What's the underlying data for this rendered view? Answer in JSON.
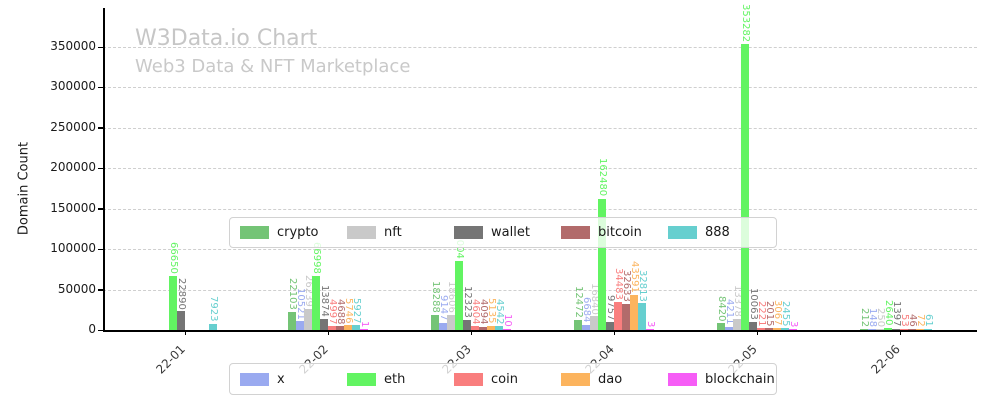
{
  "header": {
    "title": "W3Data.io Chart",
    "subtitle": "Web3 Data & NFT Marketplace"
  },
  "chart_data": {
    "type": "bar",
    "title": "W3Data.io Chart",
    "subtitle": "Web3 Data & NFT Marketplace",
    "xlabel": "",
    "ylabel": "Domain Count",
    "ylim": [
      0,
      396000
    ],
    "grid": "horizontal-dashed",
    "legend_position": "two boxes overlaying plot: top-center and bottom-center",
    "yticks": [
      0,
      50000,
      100000,
      150000,
      200000,
      250000,
      300000,
      350000
    ],
    "categories": [
      "22-01",
      "22-02",
      "22-03",
      "22-04",
      "22-05",
      "22-06"
    ],
    "series": [
      {
        "name": "crypto",
        "color": "#74c476",
        "values": [
          0,
          22103,
          18288,
          12472,
          8420,
          212
        ]
      },
      {
        "name": "x",
        "color": "#9aaaf0",
        "values": [
          0,
          10521,
          9147,
          6684,
          4211,
          148
        ]
      },
      {
        "name": "nft",
        "color": "#c9c9c9",
        "values": [
          0,
          26239,
          18606,
          16840,
          13378,
          250
        ]
      },
      {
        "name": "eth",
        "color": "#62f462",
        "values": [
          66650,
          66998,
          85004,
          162480,
          353282,
          2640
        ]
      },
      {
        "name": "wallet",
        "color": "#757575",
        "values": [
          22890,
          13874,
          12323,
          9757,
          10063,
          1397
        ]
      },
      {
        "name": "coin",
        "color": "#f97e7e",
        "values": [
          0,
          4997,
          4604,
          34483,
          2221,
          53
        ]
      },
      {
        "name": "bitcoin",
        "color": "#b26b6b",
        "values": [
          0,
          4688,
          4094,
          32633,
          2015,
          46
        ]
      },
      {
        "name": "dao",
        "color": "#fcb45e",
        "values": [
          0,
          5746,
          5135,
          43591,
          3067,
          72
        ]
      },
      {
        "name": "888",
        "color": "#66cfcf",
        "values": [
          7923,
          5927,
          4542,
          32813,
          2455,
          61
        ]
      },
      {
        "name": "blockchain",
        "color": "#f65df6",
        "values": [
          0,
          1,
          10,
          3,
          3,
          0
        ]
      }
    ],
    "legend_top": [
      "crypto",
      "nft",
      "wallet",
      "bitcoin",
      "888"
    ],
    "legend_bottom": [
      "x",
      "eth",
      "coin",
      "dao",
      "blockchain"
    ],
    "bar_value_labels": "shown rotated 90deg above each nonzero bar, colored like the bar"
  }
}
